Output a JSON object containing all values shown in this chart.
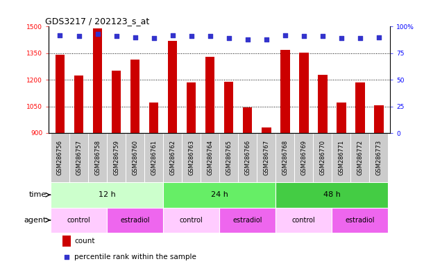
{
  "title": "GDS3217 / 202123_s_at",
  "samples": [
    "GSM286756",
    "GSM286757",
    "GSM286758",
    "GSM286759",
    "GSM286760",
    "GSM286761",
    "GSM286762",
    "GSM286763",
    "GSM286764",
    "GSM286765",
    "GSM286766",
    "GSM286767",
    "GSM286768",
    "GSM286769",
    "GSM286770",
    "GSM286771",
    "GSM286772",
    "GSM286773"
  ],
  "counts": [
    1340,
    1225,
    1490,
    1250,
    1315,
    1070,
    1420,
    1185,
    1330,
    1190,
    1045,
    930,
    1370,
    1355,
    1230,
    1070,
    1185,
    1055
  ],
  "percentile_ranks": [
    92,
    91,
    93,
    91,
    90,
    89,
    92,
    91,
    91,
    89,
    88,
    88,
    92,
    91,
    91,
    89,
    89,
    90
  ],
  "bar_color": "#cc0000",
  "dot_color": "#3333cc",
  "ylim_left": [
    900,
    1500
  ],
  "ylim_right": [
    0,
    100
  ],
  "yticks_left": [
    900,
    1050,
    1200,
    1350,
    1500
  ],
  "yticks_right": [
    0,
    25,
    50,
    75,
    100
  ],
  "grid_lines": [
    1050,
    1200,
    1350
  ],
  "time_groups": [
    {
      "label": "12 h",
      "start": 0,
      "end": 6,
      "color": "#ccffcc"
    },
    {
      "label": "24 h",
      "start": 6,
      "end": 12,
      "color": "#66ee66"
    },
    {
      "label": "48 h",
      "start": 12,
      "end": 18,
      "color": "#44cc44"
    }
  ],
  "agent_groups": [
    {
      "label": "control",
      "start": 0,
      "end": 3,
      "color": "#ffccff"
    },
    {
      "label": "estradiol",
      "start": 3,
      "end": 6,
      "color": "#ee66ee"
    },
    {
      "label": "control",
      "start": 6,
      "end": 9,
      "color": "#ffccff"
    },
    {
      "label": "estradiol",
      "start": 9,
      "end": 12,
      "color": "#ee66ee"
    },
    {
      "label": "control",
      "start": 12,
      "end": 15,
      "color": "#ffccff"
    },
    {
      "label": "estradiol",
      "start": 15,
      "end": 18,
      "color": "#ee66ee"
    }
  ],
  "sample_bg_color": "#cccccc",
  "legend_count_color": "#cc0000",
  "legend_dot_color": "#3333cc",
  "background_color": "#ffffff",
  "label_fontsize": 8,
  "tick_fontsize": 6.5,
  "sample_fontsize": 6,
  "bar_width": 0.5
}
